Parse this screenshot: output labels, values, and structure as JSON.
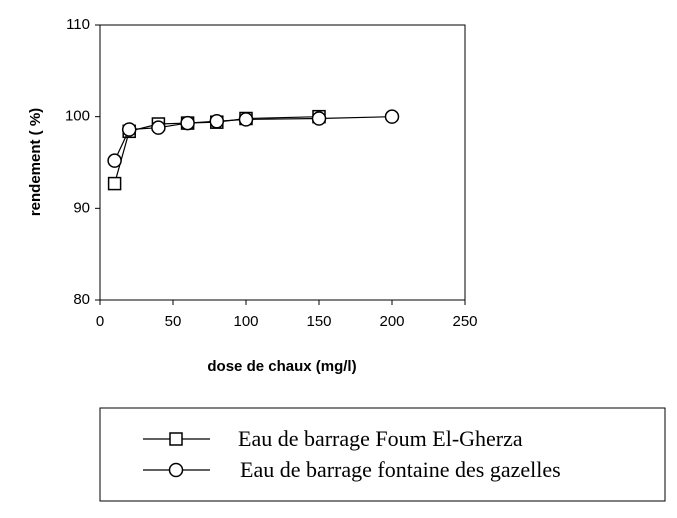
{
  "chart_data": {
    "type": "line",
    "xlabel": "dose de chaux (mg/l)",
    "ylabel": "rendement ( %)",
    "xlim": [
      0,
      250
    ],
    "xticks": [
      0,
      50,
      100,
      150,
      200,
      250
    ],
    "ylim": [
      80,
      110
    ],
    "yticks": [
      80,
      90,
      100,
      110
    ],
    "series": [
      {
        "name": "Eau de barrage Foum El-Gherza",
        "color": "#000000",
        "marker": "square",
        "x": [
          10,
          20,
          40,
          60,
          80,
          100,
          150
        ],
        "values": [
          92.7,
          98.4,
          99.2,
          99.3,
          99.4,
          99.8,
          100
        ]
      },
      {
        "name": "Eau de barrage fontaine des gazelles",
        "color": "#000000",
        "marker": "circle",
        "x": [
          10,
          20,
          40,
          60,
          80,
          100,
          150,
          200
        ],
        "values": [
          95.2,
          98.6,
          98.8,
          99.3,
          99.5,
          99.7,
          99.8,
          100
        ]
      }
    ]
  }
}
